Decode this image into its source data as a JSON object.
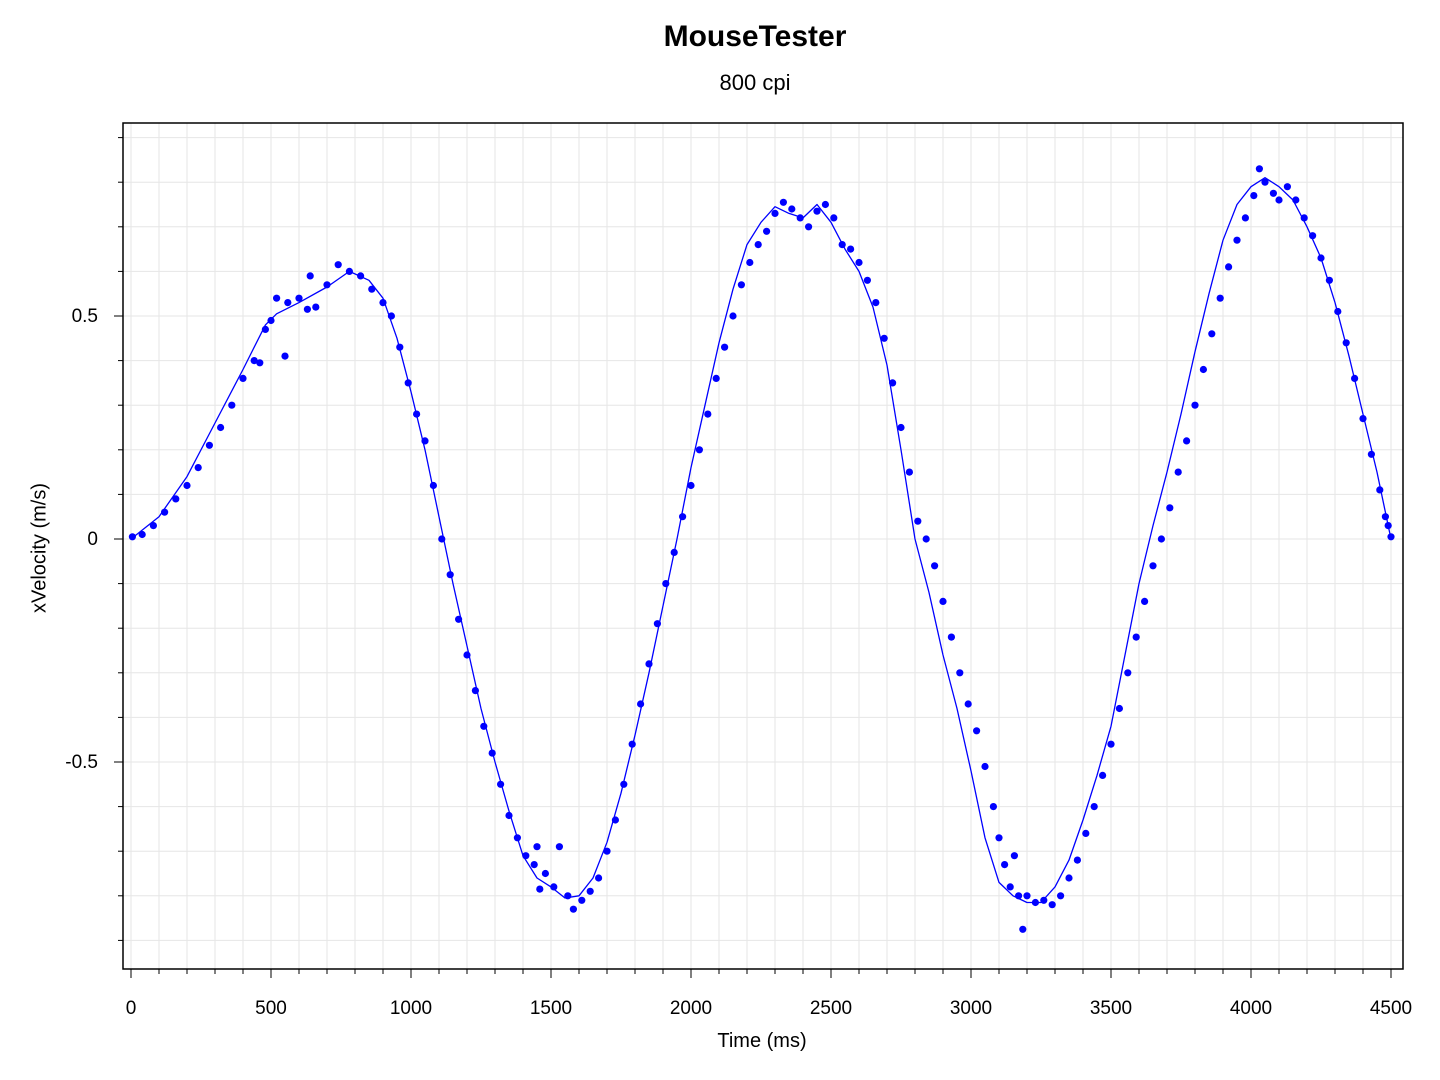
{
  "chart_data": {
    "type": "scatter",
    "title": "MouseTester",
    "subtitle": "800 cpi",
    "xlabel": "Time (ms)",
    "ylabel": "xVelocity (m/s)",
    "xlim": [
      0,
      4500
    ],
    "ylim": [
      -0.9,
      0.9
    ],
    "x_ticks": [
      0,
      500,
      1000,
      1500,
      2000,
      2500,
      3000,
      3500,
      4000,
      4500
    ],
    "y_ticks": [
      0.5,
      0,
      -0.5
    ],
    "y_tick_labels": [
      "0.5",
      "0",
      "-0.5"
    ],
    "grid": true,
    "legend": "none",
    "colors": {
      "points": "#0000ff",
      "line": "#0000ff",
      "grid": "#e6e6e6",
      "axis": "#000000"
    },
    "series": [
      {
        "type": "line",
        "points": [
          [
            0,
            0.0
          ],
          [
            100,
            0.05
          ],
          [
            200,
            0.14
          ],
          [
            300,
            0.26
          ],
          [
            400,
            0.38
          ],
          [
            480,
            0.48
          ],
          [
            520,
            0.505
          ],
          [
            600,
            0.53
          ],
          [
            700,
            0.565
          ],
          [
            780,
            0.6
          ],
          [
            850,
            0.58
          ],
          [
            900,
            0.54
          ],
          [
            950,
            0.45
          ],
          [
            1000,
            0.33
          ],
          [
            1050,
            0.2
          ],
          [
            1100,
            0.05
          ],
          [
            1150,
            -0.1
          ],
          [
            1200,
            -0.24
          ],
          [
            1250,
            -0.38
          ],
          [
            1300,
            -0.5
          ],
          [
            1350,
            -0.61
          ],
          [
            1400,
            -0.71
          ],
          [
            1450,
            -0.76
          ],
          [
            1500,
            -0.78
          ],
          [
            1550,
            -0.805
          ],
          [
            1600,
            -0.8
          ],
          [
            1650,
            -0.76
          ],
          [
            1700,
            -0.68
          ],
          [
            1750,
            -0.57
          ],
          [
            1800,
            -0.44
          ],
          [
            1850,
            -0.3
          ],
          [
            1900,
            -0.15
          ],
          [
            1950,
            0.0
          ],
          [
            2000,
            0.16
          ],
          [
            2050,
            0.3
          ],
          [
            2100,
            0.44
          ],
          [
            2150,
            0.56
          ],
          [
            2200,
            0.66
          ],
          [
            2250,
            0.71
          ],
          [
            2300,
            0.745
          ],
          [
            2350,
            0.73
          ],
          [
            2400,
            0.72
          ],
          [
            2450,
            0.75
          ],
          [
            2500,
            0.71
          ],
          [
            2550,
            0.65
          ],
          [
            2600,
            0.6
          ],
          [
            2650,
            0.52
          ],
          [
            2700,
            0.39
          ],
          [
            2750,
            0.2
          ],
          [
            2800,
            0.0
          ],
          [
            2850,
            -0.12
          ],
          [
            2900,
            -0.26
          ],
          [
            2950,
            -0.38
          ],
          [
            3000,
            -0.52
          ],
          [
            3050,
            -0.67
          ],
          [
            3100,
            -0.77
          ],
          [
            3150,
            -0.8
          ],
          [
            3200,
            -0.815
          ],
          [
            3250,
            -0.815
          ],
          [
            3300,
            -0.78
          ],
          [
            3350,
            -0.72
          ],
          [
            3400,
            -0.63
          ],
          [
            3450,
            -0.53
          ],
          [
            3500,
            -0.42
          ],
          [
            3550,
            -0.26
          ],
          [
            3600,
            -0.1
          ],
          [
            3650,
            0.03
          ],
          [
            3700,
            0.15
          ],
          [
            3750,
            0.28
          ],
          [
            3800,
            0.42
          ],
          [
            3850,
            0.55
          ],
          [
            3900,
            0.67
          ],
          [
            3950,
            0.75
          ],
          [
            4000,
            0.79
          ],
          [
            4050,
            0.81
          ],
          [
            4100,
            0.79
          ],
          [
            4150,
            0.76
          ],
          [
            4200,
            0.7
          ],
          [
            4250,
            0.63
          ],
          [
            4300,
            0.53
          ],
          [
            4350,
            0.41
          ],
          [
            4400,
            0.28
          ],
          [
            4450,
            0.15
          ],
          [
            4500,
            0.0
          ]
        ]
      },
      {
        "type": "scatter",
        "points": [
          [
            5,
            0.005
          ],
          [
            40,
            0.01
          ],
          [
            80,
            0.03
          ],
          [
            120,
            0.06
          ],
          [
            160,
            0.09
          ],
          [
            200,
            0.12
          ],
          [
            240,
            0.16
          ],
          [
            280,
            0.21
          ],
          [
            320,
            0.25
          ],
          [
            360,
            0.3
          ],
          [
            400,
            0.36
          ],
          [
            440,
            0.4
          ],
          [
            460,
            0.395
          ],
          [
            480,
            0.47
          ],
          [
            500,
            0.49
          ],
          [
            520,
            0.54
          ],
          [
            550,
            0.41
          ],
          [
            560,
            0.53
          ],
          [
            600,
            0.54
          ],
          [
            630,
            0.515
          ],
          [
            640,
            0.59
          ],
          [
            660,
            0.52
          ],
          [
            700,
            0.57
          ],
          [
            740,
            0.615
          ],
          [
            780,
            0.6
          ],
          [
            820,
            0.59
          ],
          [
            860,
            0.56
          ],
          [
            900,
            0.53
          ],
          [
            930,
            0.5
          ],
          [
            960,
            0.43
          ],
          [
            990,
            0.35
          ],
          [
            1020,
            0.28
          ],
          [
            1050,
            0.22
          ],
          [
            1080,
            0.12
          ],
          [
            1110,
            0.0
          ],
          [
            1140,
            -0.08
          ],
          [
            1170,
            -0.18
          ],
          [
            1200,
            -0.26
          ],
          [
            1230,
            -0.34
          ],
          [
            1260,
            -0.42
          ],
          [
            1290,
            -0.48
          ],
          [
            1320,
            -0.55
          ],
          [
            1350,
            -0.62
          ],
          [
            1380,
            -0.67
          ],
          [
            1410,
            -0.71
          ],
          [
            1440,
            -0.73
          ],
          [
            1450,
            -0.69
          ],
          [
            1460,
            -0.785
          ],
          [
            1480,
            -0.75
          ],
          [
            1510,
            -0.78
          ],
          [
            1530,
            -0.69
          ],
          [
            1560,
            -0.8
          ],
          [
            1580,
            -0.83
          ],
          [
            1610,
            -0.81
          ],
          [
            1640,
            -0.79
          ],
          [
            1670,
            -0.76
          ],
          [
            1700,
            -0.7
          ],
          [
            1730,
            -0.63
          ],
          [
            1760,
            -0.55
          ],
          [
            1790,
            -0.46
          ],
          [
            1820,
            -0.37
          ],
          [
            1850,
            -0.28
          ],
          [
            1880,
            -0.19
          ],
          [
            1910,
            -0.1
          ],
          [
            1940,
            -0.03
          ],
          [
            1970,
            0.05
          ],
          [
            2000,
            0.12
          ],
          [
            2030,
            0.2
          ],
          [
            2060,
            0.28
          ],
          [
            2090,
            0.36
          ],
          [
            2120,
            0.43
          ],
          [
            2150,
            0.5
          ],
          [
            2180,
            0.57
          ],
          [
            2210,
            0.62
          ],
          [
            2240,
            0.66
          ],
          [
            2270,
            0.69
          ],
          [
            2300,
            0.73
          ],
          [
            2330,
            0.755
          ],
          [
            2360,
            0.74
          ],
          [
            2390,
            0.72
          ],
          [
            2420,
            0.7
          ],
          [
            2450,
            0.735
          ],
          [
            2480,
            0.75
          ],
          [
            2510,
            0.72
          ],
          [
            2540,
            0.66
          ],
          [
            2570,
            0.65
          ],
          [
            2600,
            0.62
          ],
          [
            2630,
            0.58
          ],
          [
            2660,
            0.53
          ],
          [
            2690,
            0.45
          ],
          [
            2720,
            0.35
          ],
          [
            2750,
            0.25
          ],
          [
            2780,
            0.15
          ],
          [
            2810,
            0.04
          ],
          [
            2840,
            0.0
          ],
          [
            2870,
            -0.06
          ],
          [
            2900,
            -0.14
          ],
          [
            2930,
            -0.22
          ],
          [
            2960,
            -0.3
          ],
          [
            2990,
            -0.37
          ],
          [
            3020,
            -0.43
          ],
          [
            3050,
            -0.51
          ],
          [
            3080,
            -0.6
          ],
          [
            3100,
            -0.67
          ],
          [
            3120,
            -0.73
          ],
          [
            3140,
            -0.78
          ],
          [
            3155,
            -0.71
          ],
          [
            3170,
            -0.8
          ],
          [
            3185,
            -0.875
          ],
          [
            3200,
            -0.8
          ],
          [
            3230,
            -0.815
          ],
          [
            3260,
            -0.81
          ],
          [
            3290,
            -0.82
          ],
          [
            3320,
            -0.8
          ],
          [
            3350,
            -0.76
          ],
          [
            3380,
            -0.72
          ],
          [
            3410,
            -0.66
          ],
          [
            3440,
            -0.6
          ],
          [
            3470,
            -0.53
          ],
          [
            3500,
            -0.46
          ],
          [
            3530,
            -0.38
          ],
          [
            3560,
            -0.3
          ],
          [
            3590,
            -0.22
          ],
          [
            3620,
            -0.14
          ],
          [
            3650,
            -0.06
          ],
          [
            3680,
            0.0
          ],
          [
            3710,
            0.07
          ],
          [
            3740,
            0.15
          ],
          [
            3770,
            0.22
          ],
          [
            3800,
            0.3
          ],
          [
            3830,
            0.38
          ],
          [
            3860,
            0.46
          ],
          [
            3890,
            0.54
          ],
          [
            3920,
            0.61
          ],
          [
            3950,
            0.67
          ],
          [
            3980,
            0.72
          ],
          [
            4010,
            0.77
          ],
          [
            4030,
            0.83
          ],
          [
            4050,
            0.8
          ],
          [
            4080,
            0.775
          ],
          [
            4100,
            0.76
          ],
          [
            4130,
            0.79
          ],
          [
            4160,
            0.76
          ],
          [
            4190,
            0.72
          ],
          [
            4220,
            0.68
          ],
          [
            4250,
            0.63
          ],
          [
            4280,
            0.58
          ],
          [
            4310,
            0.51
          ],
          [
            4340,
            0.44
          ],
          [
            4370,
            0.36
          ],
          [
            4400,
            0.27
          ],
          [
            4430,
            0.19
          ],
          [
            4460,
            0.11
          ],
          [
            4480,
            0.05
          ],
          [
            4490,
            0.03
          ],
          [
            4500,
            0.005
          ]
        ]
      }
    ]
  }
}
